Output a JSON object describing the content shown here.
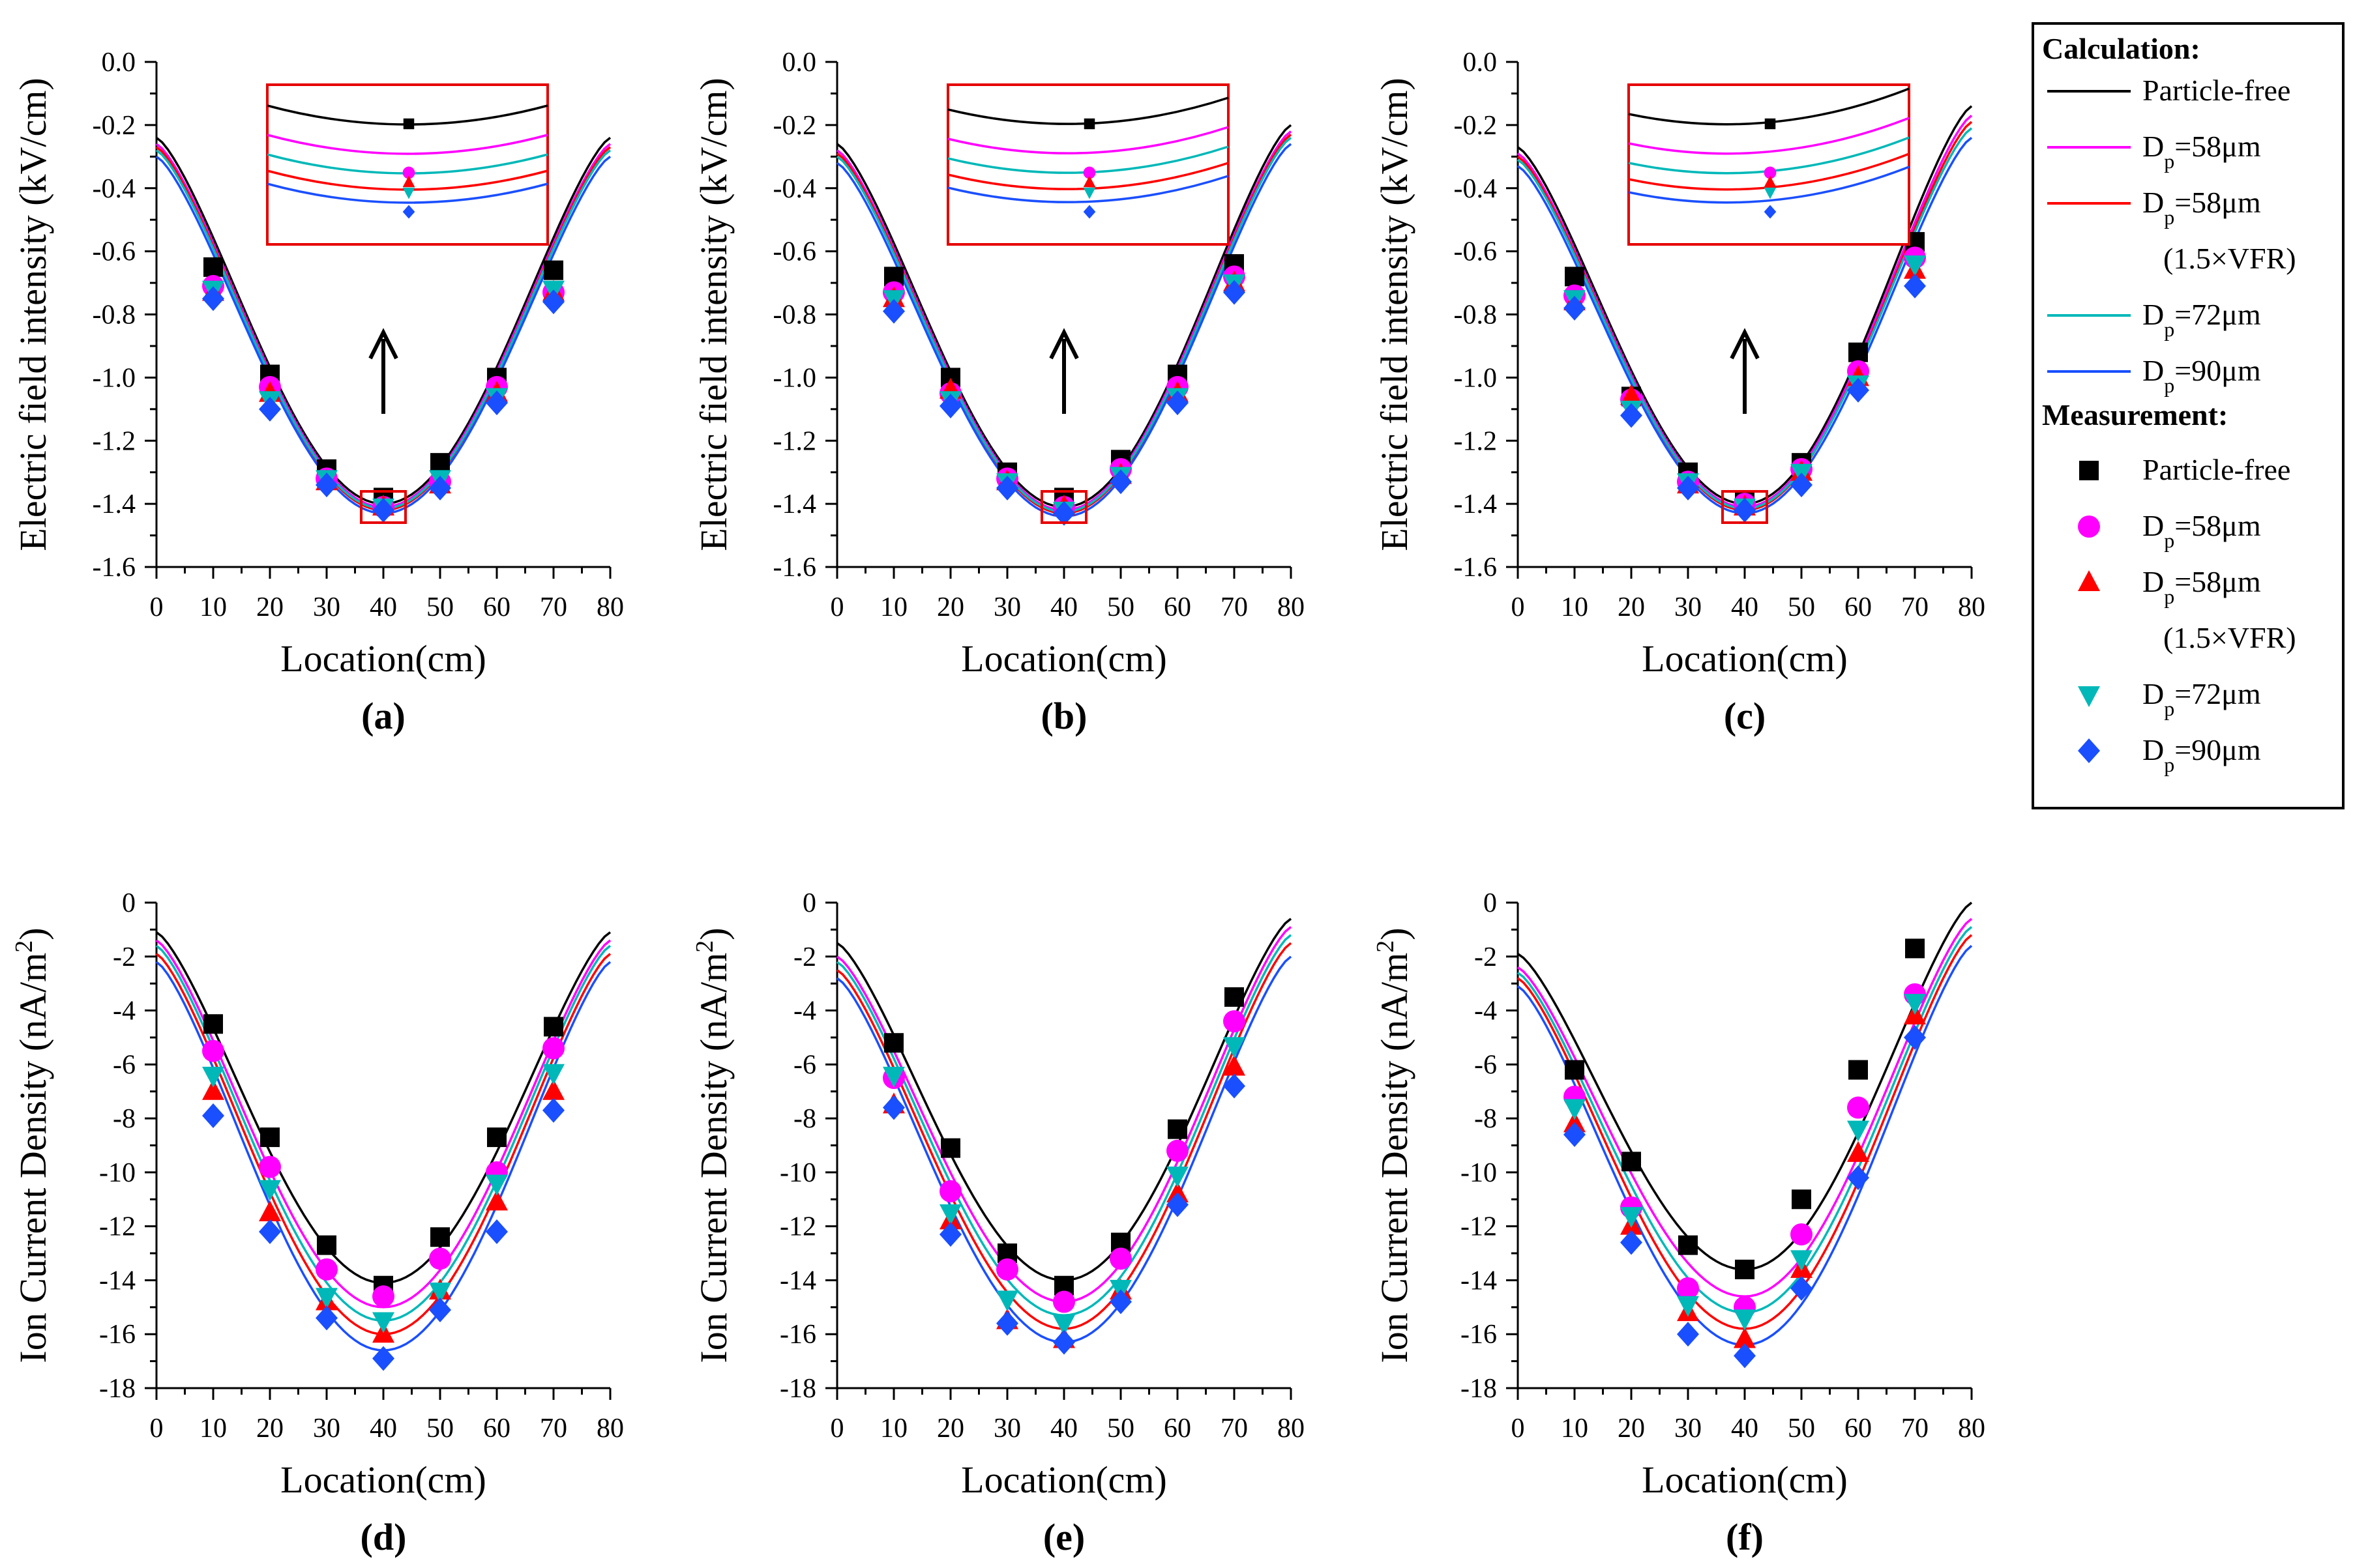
{
  "colors": {
    "Particle-free": "#000000",
    "Dp=58um": "#ff00ff",
    "Dp=58um_1.5VFR": "#ff0000",
    "Dp=72um": "#00b8b8",
    "Dp=90um": "#1a4fff",
    "zoom_box": "#e60000"
  },
  "legend": {
    "calc_title": "Calculation:",
    "meas_title": "Measurement:",
    "entries": [
      {
        "key": "Particle-free",
        "main": "Particle-free",
        "sub": ""
      },
      {
        "key": "Dp=58um",
        "main": "D",
        "sub": "p",
        "rest": "=58μm"
      },
      {
        "key": "Dp=58um_1.5VFR",
        "main": "D",
        "sub": "p",
        "rest": "=58μm",
        "extra": "(1.5×VFR)"
      },
      {
        "key": "Dp=72um",
        "main": "D",
        "sub": "p",
        "rest": "=72μm"
      },
      {
        "key": "Dp=90um",
        "main": "D",
        "sub": "p",
        "rest": "=90μm"
      }
    ]
  },
  "chart_data": [
    {
      "panel": "(a)",
      "type": "line+scatter",
      "xlabel": "Location(cm)",
      "ylabel": "Electric field intensity (kV/cm)",
      "xlim": [
        0,
        80
      ],
      "ylim": [
        -1.6,
        0
      ],
      "xticks": [
        0,
        10,
        20,
        30,
        40,
        50,
        60,
        70,
        80
      ],
      "yticks": [
        0,
        -0.2,
        -0.4,
        -0.6,
        -0.8,
        -1.0,
        -1.2,
        -1.4,
        -1.6
      ],
      "ytick_labels": [
        "0.0",
        "-0.2",
        "-0.4",
        "-0.6",
        "-0.8",
        "-1.0",
        "-1.2",
        "-1.4",
        "-1.6"
      ],
      "inset": true,
      "curves": [
        {
          "key": "Particle-free",
          "end_left": -0.24,
          "min": -1.4,
          "end_right": -0.24
        },
        {
          "key": "Dp=58um",
          "end_left": -0.26,
          "min": -1.41,
          "end_right": -0.26
        },
        {
          "key": "Dp=58um_1.5VFR",
          "end_left": -0.27,
          "min": -1.42,
          "end_right": -0.27
        },
        {
          "key": "Dp=72um",
          "end_left": -0.28,
          "min": -1.415,
          "end_right": -0.28
        },
        {
          "key": "Dp=90um",
          "end_left": -0.3,
          "min": -1.43,
          "end_right": -0.3
        }
      ],
      "x": [
        10,
        20,
        30,
        40,
        50,
        60,
        70
      ],
      "series": [
        {
          "key": "Particle-free",
          "marker": "square",
          "values": [
            -0.65,
            -0.99,
            -1.29,
            -1.38,
            -1.27,
            -1.0,
            -0.66
          ]
        },
        {
          "key": "Dp=58um",
          "marker": "circle",
          "values": [
            -0.71,
            -1.03,
            -1.32,
            -1.41,
            -1.33,
            -1.03,
            -0.73
          ]
        },
        {
          "key": "Dp=58um_1.5VFR",
          "marker": "triangle-up",
          "values": [
            -0.73,
            -1.05,
            -1.33,
            -1.41,
            -1.34,
            -1.05,
            -0.73
          ]
        },
        {
          "key": "Dp=72um",
          "marker": "triangle-down",
          "values": [
            -0.72,
            -1.07,
            -1.32,
            -1.41,
            -1.32,
            -1.06,
            -0.72
          ]
        },
        {
          "key": "Dp=90um",
          "marker": "diamond",
          "values": [
            -0.75,
            -1.1,
            -1.34,
            -1.42,
            -1.35,
            -1.08,
            -0.76
          ]
        }
      ]
    },
    {
      "panel": "(b)",
      "type": "line+scatter",
      "xlabel": "Location(cm)",
      "ylabel": "Electric field intensity (kV/cm)",
      "xlim": [
        0,
        80
      ],
      "ylim": [
        -1.6,
        0
      ],
      "xticks": [
        0,
        10,
        20,
        30,
        40,
        50,
        60,
        70,
        80
      ],
      "yticks": [
        0,
        -0.2,
        -0.4,
        -0.6,
        -0.8,
        -1.0,
        -1.2,
        -1.4,
        -1.6
      ],
      "ytick_labels": [
        "0.0",
        "-0.2",
        "-0.4",
        "-0.6",
        "-0.8",
        "-1.0",
        "-1.2",
        "-1.4",
        "-1.6"
      ],
      "inset": true,
      "curves": [
        {
          "key": "Particle-free",
          "end_left": -0.26,
          "min": -1.41,
          "end_right": -0.2
        },
        {
          "key": "Dp=58um",
          "end_left": -0.28,
          "min": -1.42,
          "end_right": -0.22
        },
        {
          "key": "Dp=58um_1.5VFR",
          "end_left": -0.29,
          "min": -1.43,
          "end_right": -0.23
        },
        {
          "key": "Dp=72um",
          "end_left": -0.3,
          "min": -1.425,
          "end_right": -0.24
        },
        {
          "key": "Dp=90um",
          "end_left": -0.32,
          "min": -1.44,
          "end_right": -0.26
        }
      ],
      "x": [
        10,
        20,
        30,
        40,
        50,
        60,
        70
      ],
      "series": [
        {
          "key": "Particle-free",
          "marker": "square",
          "values": [
            -0.68,
            -1.0,
            -1.3,
            -1.38,
            -1.26,
            -0.99,
            -0.64
          ]
        },
        {
          "key": "Dp=58um",
          "marker": "circle",
          "values": [
            -0.73,
            -1.05,
            -1.32,
            -1.41,
            -1.29,
            -1.03,
            -0.68
          ]
        },
        {
          "key": "Dp=58um_1.5VFR",
          "marker": "triangle-up",
          "values": [
            -0.75,
            -1.04,
            -1.33,
            -1.41,
            -1.31,
            -1.05,
            -0.7
          ]
        },
        {
          "key": "Dp=72um",
          "marker": "triangle-down",
          "values": [
            -0.75,
            -1.07,
            -1.33,
            -1.42,
            -1.31,
            -1.06,
            -0.7
          ]
        },
        {
          "key": "Dp=90um",
          "marker": "diamond",
          "values": [
            -0.79,
            -1.09,
            -1.35,
            -1.43,
            -1.33,
            -1.08,
            -0.73
          ]
        }
      ]
    },
    {
      "panel": "(c)",
      "type": "line+scatter",
      "xlabel": "Location(cm)",
      "ylabel": "Electric field intensity (kV/cm)",
      "xlim": [
        0,
        80
      ],
      "ylim": [
        -1.6,
        0
      ],
      "xticks": [
        0,
        10,
        20,
        30,
        40,
        50,
        60,
        70,
        80
      ],
      "yticks": [
        0,
        -0.2,
        -0.4,
        -0.6,
        -0.8,
        -1.0,
        -1.2,
        -1.4,
        -1.6
      ],
      "ytick_labels": [
        "0.0",
        "-0.2",
        "-0.4",
        "-0.6",
        "-0.8",
        "-1.0",
        "-1.2",
        "-1.4",
        "-1.6"
      ],
      "inset": true,
      "curves": [
        {
          "key": "Particle-free",
          "end_left": -0.27,
          "min": -1.4,
          "end_right": -0.14
        },
        {
          "key": "Dp=58um",
          "end_left": -0.29,
          "min": -1.41,
          "end_right": -0.17
        },
        {
          "key": "Dp=58um_1.5VFR",
          "end_left": -0.3,
          "min": -1.42,
          "end_right": -0.19
        },
        {
          "key": "Dp=72um",
          "end_left": -0.31,
          "min": -1.415,
          "end_right": -0.21
        },
        {
          "key": "Dp=90um",
          "end_left": -0.33,
          "min": -1.43,
          "end_right": -0.24
        }
      ],
      "x": [
        10,
        20,
        30,
        40,
        50,
        60,
        70
      ],
      "series": [
        {
          "key": "Particle-free",
          "marker": "square",
          "values": [
            -0.68,
            -1.06,
            -1.3,
            -1.39,
            -1.27,
            -0.92,
            -0.57
          ]
        },
        {
          "key": "Dp=58um",
          "marker": "circle",
          "values": [
            -0.74,
            -1.07,
            -1.33,
            -1.4,
            -1.29,
            -0.98,
            -0.62
          ]
        },
        {
          "key": "Dp=58um_1.5VFR",
          "marker": "triangle-up",
          "values": [
            -0.76,
            -1.06,
            -1.34,
            -1.41,
            -1.3,
            -1.0,
            -0.66
          ]
        },
        {
          "key": "Dp=72um",
          "marker": "triangle-down",
          "values": [
            -0.75,
            -1.1,
            -1.33,
            -1.41,
            -1.3,
            -1.02,
            -0.64
          ]
        },
        {
          "key": "Dp=90um",
          "marker": "diamond",
          "values": [
            -0.78,
            -1.12,
            -1.35,
            -1.42,
            -1.34,
            -1.04,
            -0.71
          ]
        }
      ]
    },
    {
      "panel": "(d)",
      "type": "line+scatter",
      "xlabel": "Location(cm)",
      "ylabel": "Ion Current Density (nA/m",
      "ylabel_sup": "2",
      "ylabel_end": ")",
      "xlim": [
        0,
        80
      ],
      "ylim": [
        -18,
        0
      ],
      "xticks": [
        0,
        10,
        20,
        30,
        40,
        50,
        60,
        70,
        80
      ],
      "yticks": [
        0,
        -2,
        -4,
        -6,
        -8,
        -10,
        -12,
        -14,
        -16,
        -18
      ],
      "ytick_labels": [
        "0",
        "-2",
        "-4",
        "-6",
        "-8",
        "-10",
        "-12",
        "-14",
        "-16",
        "-18"
      ],
      "inset": false,
      "curves": [
        {
          "key": "Particle-free",
          "end_left": -1.1,
          "min": -14.1,
          "end_right": -1.1
        },
        {
          "key": "Dp=58um",
          "end_left": -1.4,
          "min": -15.0,
          "end_right": -1.4
        },
        {
          "key": "Dp=58um_1.5VFR",
          "end_left": -1.9,
          "min": -16.0,
          "end_right": -1.9
        },
        {
          "key": "Dp=72um",
          "end_left": -1.6,
          "min": -15.5,
          "end_right": -1.6
        },
        {
          "key": "Dp=90um",
          "end_left": -2.2,
          "min": -16.6,
          "end_right": -2.2
        }
      ],
      "x": [
        10,
        20,
        30,
        40,
        50,
        60,
        70
      ],
      "series": [
        {
          "key": "Particle-free",
          "marker": "square",
          "values": [
            -4.5,
            -8.7,
            -12.7,
            -14.2,
            -12.4,
            -8.7,
            -4.6
          ]
        },
        {
          "key": "Dp=58um",
          "marker": "circle",
          "values": [
            -5.5,
            -9.8,
            -13.6,
            -14.6,
            -13.2,
            -10.0,
            -5.4
          ]
        },
        {
          "key": "Dp=58um_1.5VFR",
          "marker": "triangle-up",
          "values": [
            -7.0,
            -11.5,
            -14.8,
            -16.0,
            -14.4,
            -11.1,
            -7.0
          ]
        },
        {
          "key": "Dp=72um",
          "marker": "triangle-down",
          "values": [
            -6.4,
            -10.6,
            -14.6,
            -15.5,
            -14.4,
            -10.4,
            -6.3
          ]
        },
        {
          "key": "Dp=90um",
          "marker": "diamond",
          "values": [
            -7.9,
            -12.2,
            -15.4,
            -16.9,
            -15.1,
            -12.2,
            -7.7
          ]
        }
      ]
    },
    {
      "panel": "(e)",
      "type": "line+scatter",
      "xlabel": "Location(cm)",
      "ylabel": "Ion Current Density (nA/m",
      "ylabel_sup": "2",
      "ylabel_end": ")",
      "xlim": [
        0,
        80
      ],
      "ylim": [
        -18,
        0
      ],
      "xticks": [
        0,
        10,
        20,
        30,
        40,
        50,
        60,
        70,
        80
      ],
      "yticks": [
        0,
        -2,
        -4,
        -6,
        -8,
        -10,
        -12,
        -14,
        -16,
        -18
      ],
      "ytick_labels": [
        "0",
        "-2",
        "-4",
        "-6",
        "-8",
        "-10",
        "-12",
        "-14",
        "-16",
        "-18"
      ],
      "inset": false,
      "curves": [
        {
          "key": "Particle-free",
          "end_left": -1.5,
          "min": -14.0,
          "end_right": -0.6
        },
        {
          "key": "Dp=58um",
          "end_left": -2.0,
          "min": -14.8,
          "end_right": -0.9
        },
        {
          "key": "Dp=58um_1.5VFR",
          "end_left": -2.5,
          "min": -15.8,
          "end_right": -1.5
        },
        {
          "key": "Dp=72um",
          "end_left": -2.2,
          "min": -15.3,
          "end_right": -1.2
        },
        {
          "key": "Dp=90um",
          "end_left": -2.8,
          "min": -16.3,
          "end_right": -2.0
        }
      ],
      "x": [
        10,
        20,
        30,
        40,
        50,
        60,
        70
      ],
      "series": [
        {
          "key": "Particle-free",
          "marker": "square",
          "values": [
            -5.2,
            -9.1,
            -13.0,
            -14.2,
            -12.6,
            -8.4,
            -3.5
          ]
        },
        {
          "key": "Dp=58um",
          "marker": "circle",
          "values": [
            -6.5,
            -10.7,
            -13.6,
            -14.8,
            -13.2,
            -9.2,
            -4.4
          ]
        },
        {
          "key": "Dp=58um_1.5VFR",
          "marker": "triangle-up",
          "values": [
            -7.5,
            -11.8,
            -15.5,
            -16.2,
            -14.4,
            -10.8,
            -6.1
          ]
        },
        {
          "key": "Dp=72um",
          "marker": "triangle-down",
          "values": [
            -6.4,
            -11.5,
            -14.7,
            -15.6,
            -14.3,
            -10.1,
            -5.3
          ]
        },
        {
          "key": "Dp=90um",
          "marker": "diamond",
          "values": [
            -7.6,
            -12.3,
            -15.6,
            -16.3,
            -14.8,
            -11.2,
            -6.8
          ]
        }
      ]
    },
    {
      "panel": "(f)",
      "type": "line+scatter",
      "xlabel": "Location(cm)",
      "ylabel": "Ion Current Density (nA/m",
      "ylabel_sup": "2",
      "ylabel_end": ")",
      "xlim": [
        0,
        80
      ],
      "ylim": [
        -18,
        0
      ],
      "xticks": [
        0,
        10,
        20,
        30,
        40,
        50,
        60,
        70,
        80
      ],
      "yticks": [
        0,
        -2,
        -4,
        -6,
        -8,
        -10,
        -12,
        -14,
        -16,
        -18
      ],
      "ytick_labels": [
        "0",
        "-2",
        "-4",
        "-6",
        "-8",
        "-10",
        "-12",
        "-14",
        "-16",
        "-18"
      ],
      "inset": false,
      "curves": [
        {
          "key": "Particle-free",
          "end_left": -1.9,
          "min": -13.6,
          "end_right": 0.0
        },
        {
          "key": "Dp=58um",
          "end_left": -2.4,
          "min": -14.6,
          "end_right": -0.6
        },
        {
          "key": "Dp=58um_1.5VFR",
          "end_left": -2.8,
          "min": -15.8,
          "end_right": -1.2
        },
        {
          "key": "Dp=72um",
          "end_left": -2.6,
          "min": -15.2,
          "end_right": -0.9
        },
        {
          "key": "Dp=90um",
          "end_left": -3.1,
          "min": -16.4,
          "end_right": -1.6
        }
      ],
      "x": [
        10,
        20,
        30,
        40,
        50,
        60,
        70
      ],
      "series": [
        {
          "key": "Particle-free",
          "marker": "square",
          "values": [
            -6.2,
            -9.6,
            -12.7,
            -13.6,
            -11.0,
            -6.2,
            -1.7
          ]
        },
        {
          "key": "Dp=58um",
          "marker": "circle",
          "values": [
            -7.2,
            -11.3,
            -14.3,
            -15.0,
            -12.3,
            -7.6,
            -3.4
          ]
        },
        {
          "key": "Dp=58um_1.5VFR",
          "marker": "triangle-up",
          "values": [
            -8.2,
            -12.0,
            -15.2,
            -16.2,
            -13.6,
            -9.3,
            -4.2
          ]
        },
        {
          "key": "Dp=72um",
          "marker": "triangle-down",
          "values": [
            -7.6,
            -11.6,
            -14.9,
            -15.4,
            -13.2,
            -8.4,
            -3.7
          ]
        },
        {
          "key": "Dp=90um",
          "marker": "diamond",
          "values": [
            -8.6,
            -12.6,
            -16.0,
            -16.8,
            -14.3,
            -10.2,
            -5.0
          ]
        }
      ]
    }
  ]
}
